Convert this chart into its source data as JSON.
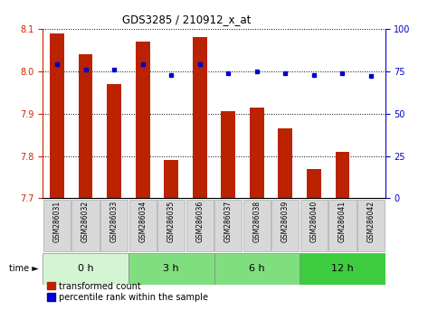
{
  "title": "GDS3285 / 210912_x_at",
  "samples": [
    "GSM286031",
    "GSM286032",
    "GSM286033",
    "GSM286034",
    "GSM286035",
    "GSM286036",
    "GSM286037",
    "GSM286038",
    "GSM286039",
    "GSM286040",
    "GSM286041",
    "GSM286042"
  ],
  "bar_values": [
    8.09,
    8.04,
    7.97,
    8.07,
    7.79,
    8.08,
    7.905,
    7.915,
    7.865,
    7.77,
    7.81,
    7.7
  ],
  "percentile_values": [
    79,
    76,
    76,
    79,
    73,
    79,
    74,
    75,
    74,
    73,
    74,
    72
  ],
  "ylim_left": [
    7.7,
    8.1
  ],
  "ylim_right": [
    0,
    100
  ],
  "yticks_left": [
    7.7,
    7.8,
    7.9,
    8.0,
    8.1
  ],
  "yticks_right": [
    0,
    25,
    50,
    75,
    100
  ],
  "bar_color": "#bb2200",
  "dot_color": "#0000cc",
  "bar_bottom": 7.7,
  "groups": [
    {
      "label": "0 h",
      "start": 0,
      "end": 3,
      "color": "#d4f5d4"
    },
    {
      "label": "3 h",
      "start": 3,
      "end": 6,
      "color": "#7fdf7f"
    },
    {
      "label": "6 h",
      "start": 6,
      "end": 9,
      "color": "#7fdf7f"
    },
    {
      "label": "12 h",
      "start": 9,
      "end": 12,
      "color": "#3dcc3d"
    }
  ],
  "time_label": "time",
  "legend_bar_label": "transformed count",
  "legend_dot_label": "percentile rank within the sample",
  "grid_color": "black",
  "sample_box_color": "#d8d8d8",
  "left_tick_color": "#cc2200",
  "right_tick_color": "#0000cc"
}
